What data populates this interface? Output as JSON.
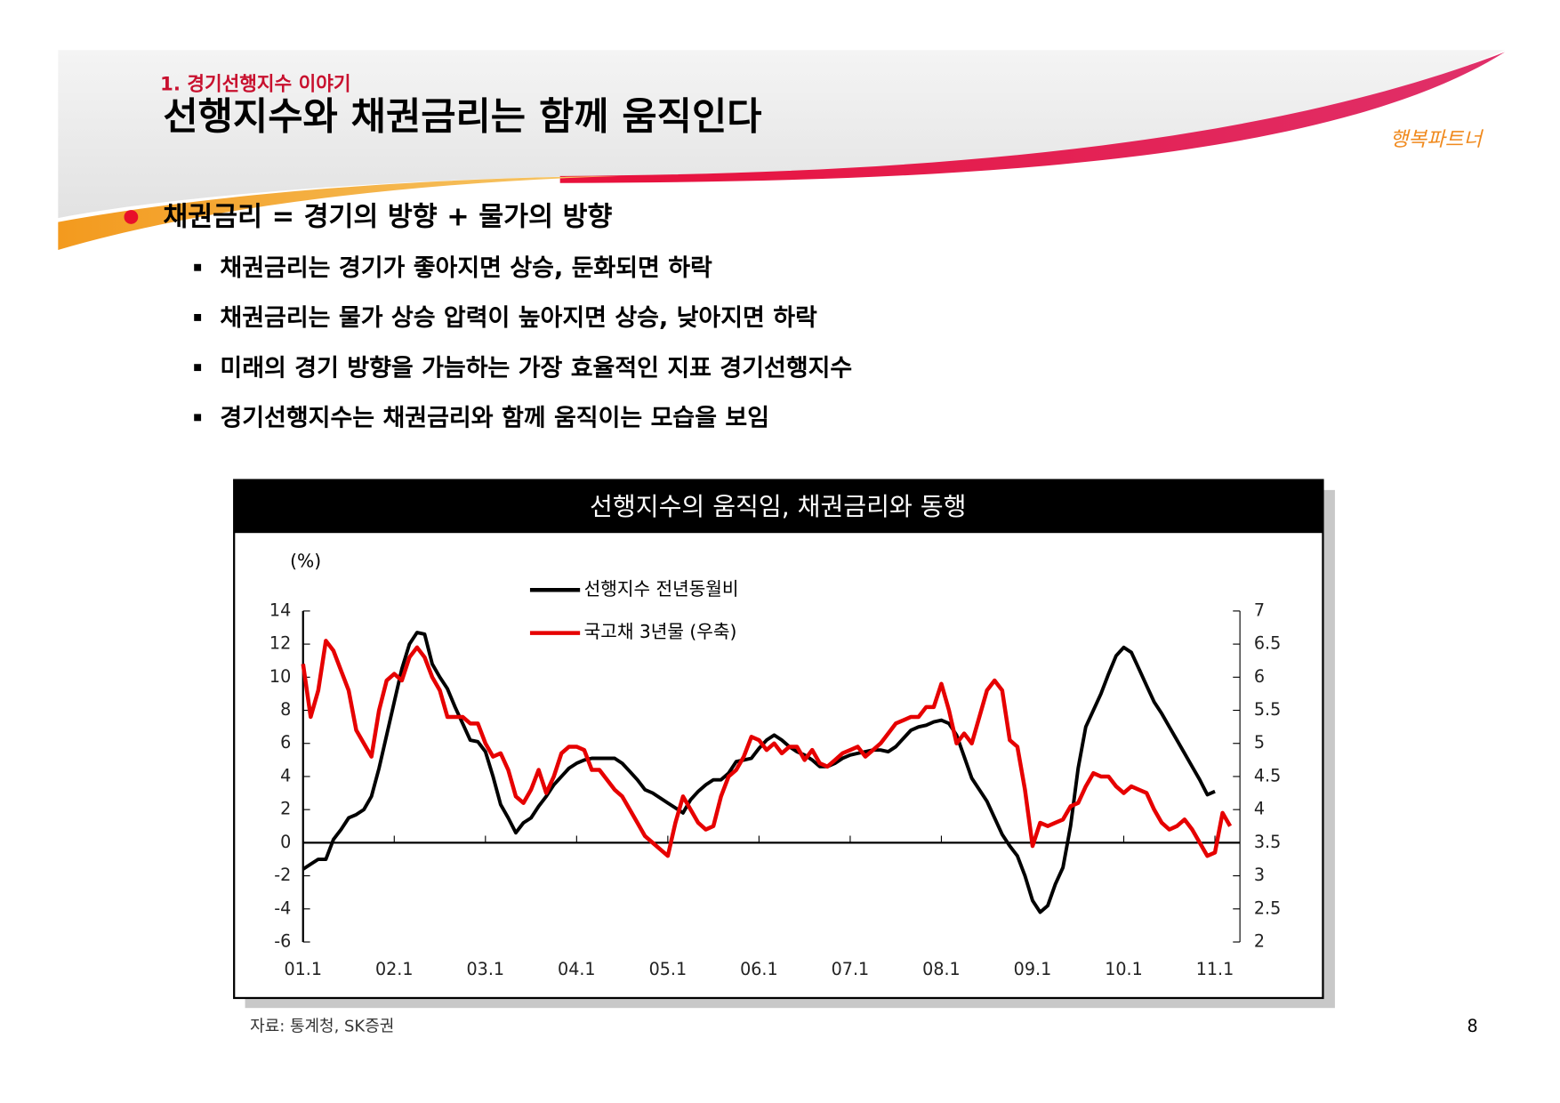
{
  "header": {
    "section": "1. 경기선행지수 이야기",
    "title": "선행지수와 채권금리는 함께 움직인다",
    "logo": "행복파트너"
  },
  "body": {
    "heading": "채권금리 =  경기의 방향 +  물가의 방향",
    "bullets": [
      "채권금리는 경기가 좋아지면 상승, 둔화되면 하락",
      "채권금리는 물가 상승 압력이 높아지면 상승, 낮아지면 하락",
      "미래의 경기 방향을 가늠하는 가장 효율적인 지표 경기선행지수",
      "경기선행지수는 채권금리와 함께 움직이는 모습을 보임"
    ]
  },
  "chart_data": {
    "type": "line",
    "title": "선행지수의 움직임, 채권금리와 동행",
    "y_label": "(%)",
    "categories": [
      "01.1",
      null,
      null,
      null,
      null,
      null,
      null,
      null,
      null,
      null,
      null,
      null,
      "02.1",
      null,
      null,
      null,
      null,
      null,
      null,
      null,
      null,
      null,
      null,
      null,
      "03.1",
      null,
      null,
      null,
      null,
      null,
      null,
      null,
      null,
      null,
      null,
      null,
      "04.1",
      null,
      null,
      null,
      null,
      null,
      null,
      null,
      null,
      null,
      null,
      null,
      "05.1",
      null,
      null,
      null,
      null,
      null,
      null,
      null,
      null,
      null,
      null,
      null,
      "06.1",
      null,
      null,
      null,
      null,
      null,
      null,
      null,
      null,
      null,
      null,
      null,
      "07.1",
      null,
      null,
      null,
      null,
      null,
      null,
      null,
      null,
      null,
      null,
      null,
      "08.1",
      null,
      null,
      null,
      null,
      null,
      null,
      null,
      null,
      null,
      null,
      null,
      "09.1",
      null,
      null,
      null,
      null,
      null,
      null,
      null,
      null,
      null,
      null,
      null,
      "10.1",
      null,
      null,
      null,
      null,
      null,
      null,
      null,
      null,
      null,
      null,
      null,
      "11.1",
      null,
      null
    ],
    "series": [
      {
        "name": "선행지수 전년동월비",
        "color": "#000000",
        "values": [
          -1.6,
          -1.3,
          -1.0,
          -1.0,
          0.2,
          0.8,
          1.5,
          1.7,
          2.0,
          2.8,
          4.5,
          6.5,
          8.5,
          10.5,
          12.0,
          12.7,
          12.6,
          10.8,
          10.0,
          9.3,
          8.2,
          7.2,
          6.2,
          6.1,
          5.5,
          4.0,
          2.3,
          1.5,
          0.6,
          1.2,
          1.5,
          2.2,
          2.8,
          3.5,
          4.0,
          4.5,
          4.8,
          5.0,
          5.1,
          5.1,
          5.1,
          5.1,
          4.8,
          4.3,
          3.8,
          3.2,
          3.0,
          2.7,
          2.4,
          2.1,
          1.8,
          2.6,
          3.1,
          3.5,
          3.8,
          3.8,
          4.2,
          4.9,
          5.0,
          5.1,
          5.7,
          6.2,
          6.5,
          6.2,
          5.8,
          5.5,
          5.3,
          5.0,
          4.6,
          4.6,
          4.8,
          5.1,
          5.3,
          5.4,
          5.5,
          5.6,
          5.6,
          5.5,
          5.8,
          6.3,
          6.8,
          7.0,
          7.1,
          7.3,
          7.4,
          7.2,
          6.5,
          5.2,
          3.9,
          3.2,
          2.5,
          1.5,
          0.5,
          -0.2,
          -0.8,
          -2.0,
          -3.5,
          -4.2,
          -3.8,
          -2.5,
          -1.5,
          1.0,
          4.5,
          7.0,
          8.0,
          9.0,
          10.2,
          11.3,
          11.8,
          11.5,
          10.5,
          9.5,
          8.5,
          7.8,
          7.0,
          6.2,
          5.4,
          4.6,
          3.8,
          2.9,
          3.1,
          null,
          null
        ]
      },
      {
        "name": "국고채 3년물 (우축)",
        "color": "#e60000",
        "axis": "y2",
        "values": [
          6.2,
          5.4,
          5.8,
          6.55,
          6.4,
          6.1,
          5.8,
          5.2,
          5.0,
          4.8,
          5.5,
          5.95,
          6.05,
          5.95,
          6.3,
          6.45,
          6.3,
          6.0,
          5.8,
          5.4,
          5.4,
          5.4,
          5.3,
          5.3,
          5.0,
          4.8,
          4.85,
          4.6,
          4.2,
          4.1,
          4.3,
          4.6,
          4.25,
          4.5,
          4.85,
          4.95,
          4.95,
          4.9,
          4.6,
          4.6,
          4.45,
          4.3,
          4.2,
          4.0,
          3.8,
          3.6,
          3.5,
          3.4,
          3.3,
          3.8,
          4.2,
          4.0,
          3.8,
          3.7,
          3.75,
          4.2,
          4.5,
          4.6,
          4.8,
          5.1,
          5.05,
          4.9,
          5.0,
          4.85,
          4.95,
          4.95,
          4.75,
          4.9,
          4.7,
          4.65,
          4.75,
          4.85,
          4.9,
          4.95,
          4.8,
          4.9,
          5.0,
          5.15,
          5.3,
          5.35,
          5.4,
          5.4,
          5.55,
          5.55,
          5.9,
          5.5,
          5.0,
          5.15,
          5.0,
          5.4,
          5.8,
          5.95,
          5.8,
          5.05,
          4.95,
          4.3,
          3.45,
          3.8,
          3.75,
          3.8,
          3.85,
          4.05,
          4.1,
          4.35,
          4.55,
          4.5,
          4.5,
          4.35,
          4.25,
          4.35,
          4.3,
          4.25,
          4.0,
          3.8,
          3.7,
          3.75,
          3.85,
          3.7,
          3.5,
          3.3,
          3.35,
          3.95,
          3.75
        ]
      }
    ],
    "ylim": [
      -6,
      14
    ],
    "yticks": [
      -6,
      -4,
      -2,
      0,
      2,
      4,
      6,
      8,
      10,
      12,
      14
    ],
    "y2lim": [
      2,
      7
    ],
    "y2ticks": [
      2,
      2.5,
      3,
      3.5,
      4,
      4.5,
      5,
      5.5,
      6,
      6.5,
      7
    ]
  },
  "footer": {
    "source": "자료: 통계청, SK증권",
    "page": "8"
  }
}
